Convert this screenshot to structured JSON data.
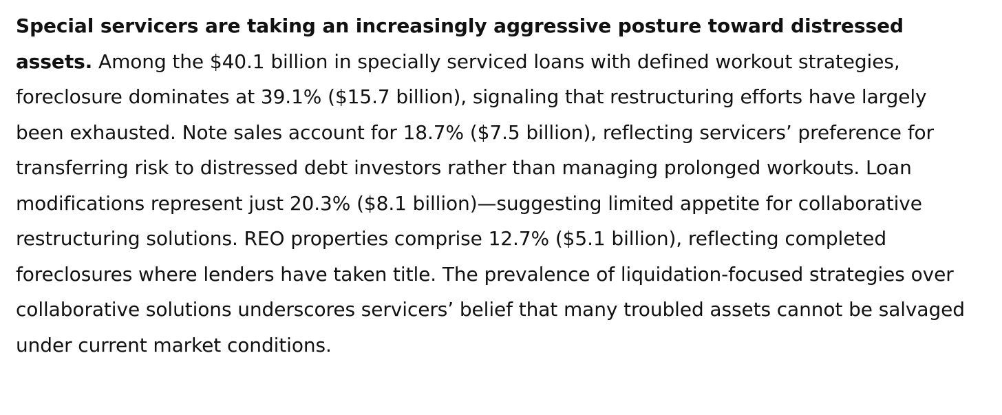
{
  "article": {
    "lead": "Special servicers are taking an increasingly aggressive posture toward distressed assets.",
    "body": "Among the $40.1 billion in specially serviced loans with defined workout strategies, foreclosure dominates at 39.1% ($15.7 billion), signaling that restructuring efforts have largely been exhausted. Note sales account for 18.7% ($7.5 billion), reflecting servicers’ preference for transferring risk to distressed debt investors rather than managing prolonged workouts. Loan modifications represent just 20.3% ($8.1 billion)—suggesting limited appetite for collaborative restructuring solutions. REO properties comprise 12.7% ($5.1 billion), reflecting completed foreclosures where lenders have taken title. The prevalence of liquidation-focused strategies over collaborative solutions underscores servicers’ belief that many troubled assets cannot be salvaged under current market conditions."
  }
}
